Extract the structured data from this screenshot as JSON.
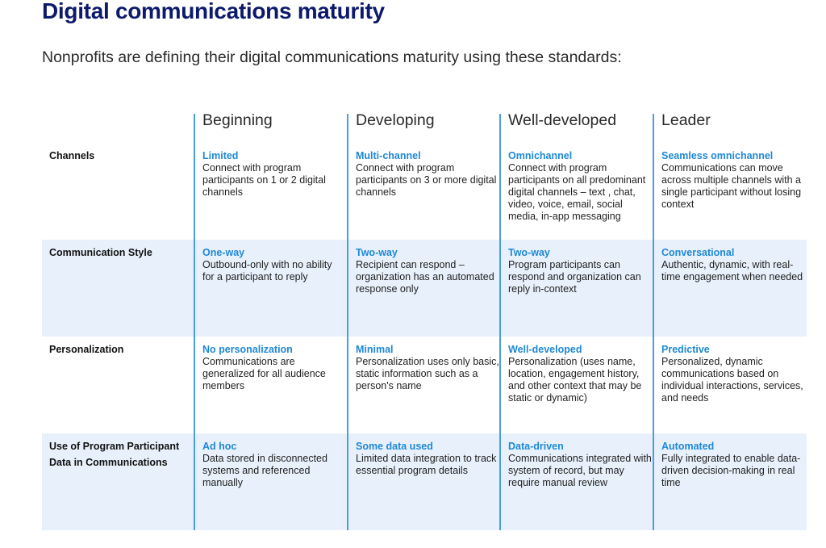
{
  "title": "Digital communications maturity",
  "subtitle": "Nonprofits are defining their digital communications maturity using these standards:",
  "columns": [
    "Beginning",
    "Developing",
    "Well-developed",
    "Leader"
  ],
  "rows": [
    {
      "label": "Channels",
      "cells": [
        {
          "title": "Limited",
          "text": "Connect with program participants on 1 or 2 digital channels"
        },
        {
          "title": "Multi-channel",
          "text": "Connect with program participants on 3 or more digital channels"
        },
        {
          "title": "Omnichannel",
          "text": "Connect with program participants on all predominant digital channels – text , chat, video, voice, email, social media, in-app messaging"
        },
        {
          "title": "Seamless omnichannel",
          "text": "Communications can move across multiple channels with a single participant without losing context"
        }
      ]
    },
    {
      "label": "Communication Style",
      "cells": [
        {
          "title": "One-way",
          "text": "Outbound-only with no ability for a participant to reply"
        },
        {
          "title": "Two-way",
          "text": "Recipient can respond – organization has an automated response only"
        },
        {
          "title": "Two-way",
          "text": "Program participants can respond and organization can reply in-context"
        },
        {
          "title": "Conversational",
          "text": "Authentic, dynamic, with real-time engagement when needed"
        }
      ]
    },
    {
      "label": "Personalization",
      "cells": [
        {
          "title": "No personalization",
          "text": "Communications are generalized for all audience members"
        },
        {
          "title": "Minimal",
          "text": "Personalization uses only basic, static information such as a person's name"
        },
        {
          "title": "Well-developed",
          "text": "Personalization (uses name, location, engagement history, and other context that may be static or dynamic)"
        },
        {
          "title": "Predictive",
          "text": "Personalized, dynamic communications based on individual interactions, services, and needs"
        }
      ]
    },
    {
      "label": "Use of Program Participant Data in Communications",
      "cells": [
        {
          "title": "Ad hoc",
          "text": "Data stored in disconnected systems and referenced manually"
        },
        {
          "title": "Some data used",
          "text": "Limited data integration to track essential program details"
        },
        {
          "title": "Data-driven",
          "text": "Communications integrated with system of record, but may require manual review"
        },
        {
          "title": "Automated",
          "text": "Fully integrated to enable data-driven decision-making in real time"
        }
      ]
    }
  ]
}
